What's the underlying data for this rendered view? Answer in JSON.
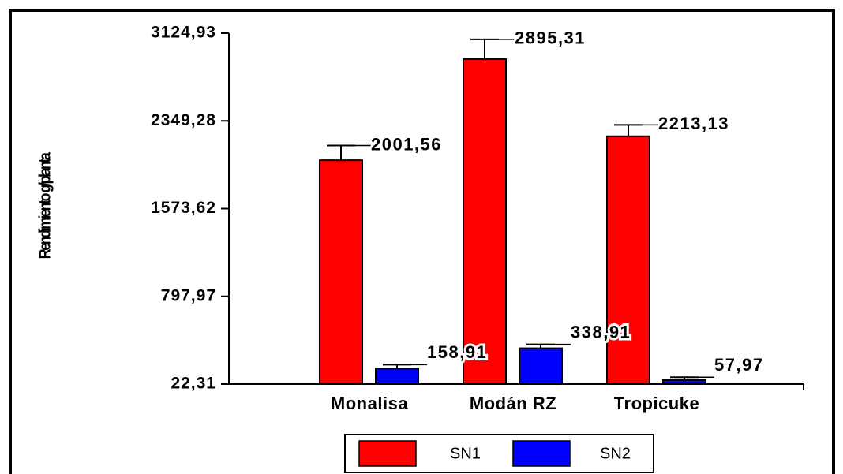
{
  "chart_data": {
    "type": "bar",
    "y_label": "Rendimiento g/planta",
    "categories": [
      "Monalisa",
      "Modán RZ",
      "Tropicuke"
    ],
    "series": [
      {
        "name": "SN1",
        "color": "#ff0000",
        "values": [
          2001.56,
          2895.31,
          2213.13
        ],
        "value_labels": [
          "2001,56",
          "2895,31",
          "2213,13"
        ],
        "errors": [
          130,
          175,
          100
        ]
      },
      {
        "name": "SN2",
        "color": "#0000ff",
        "values": [
          158.91,
          338.91,
          57.97
        ],
        "value_labels": [
          "158,91",
          "338,91",
          "57,97"
        ],
        "errors": [
          35,
          35,
          25
        ]
      }
    ],
    "ylim": [
      22.31,
      3124.93
    ],
    "yticks": [
      {
        "value": 22.31,
        "label": "22,31"
      },
      {
        "value": 797.97,
        "label": "797,97"
      },
      {
        "value": 1573.62,
        "label": "1573,62"
      },
      {
        "value": 2349.28,
        "label": "2349,28"
      },
      {
        "value": 3124.93,
        "label": "3124,93"
      }
    ],
    "legend": "bottom"
  }
}
